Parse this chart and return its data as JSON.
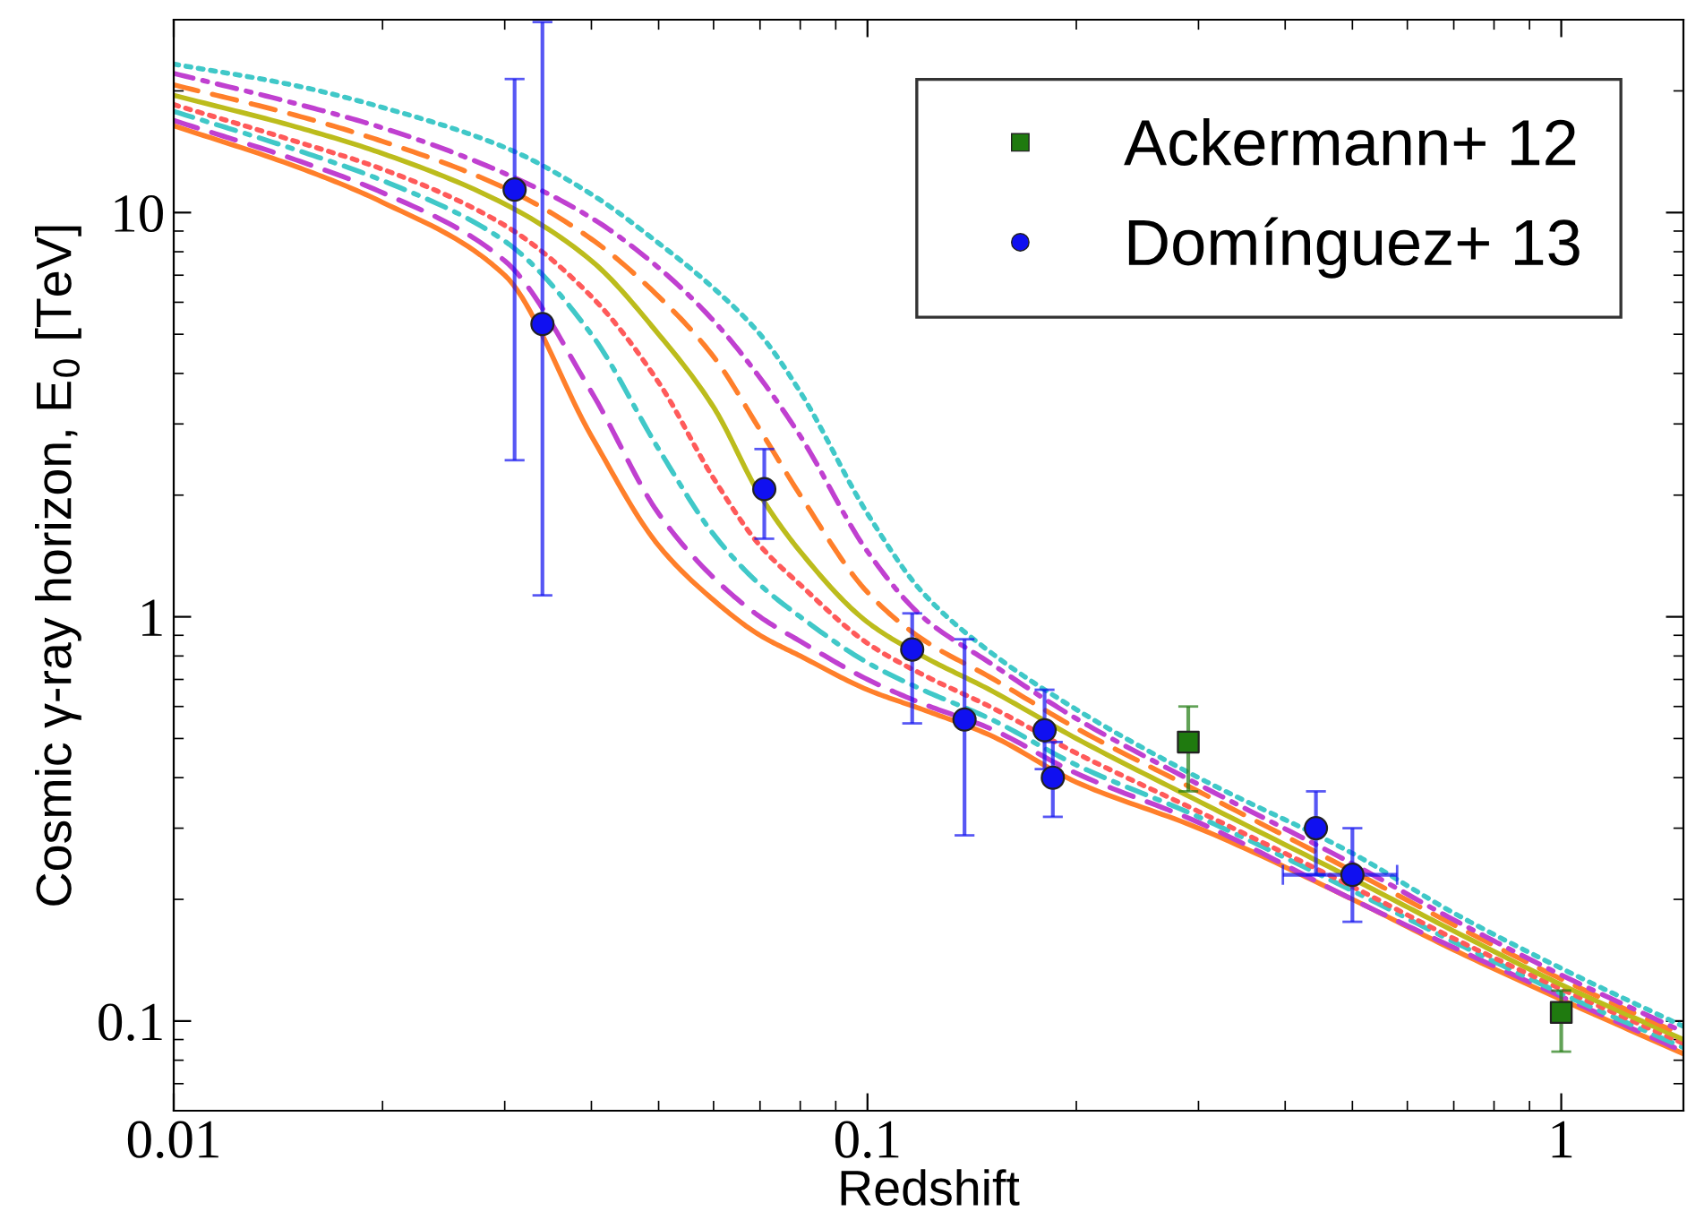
{
  "chart_data": {
    "type": "line",
    "xlabel": "Redshift",
    "ylabel": "Cosmic γ-ray horizon, E$_{0}$ [TeV]",
    "log": "xy",
    "xlim": [
      0.01,
      1.5
    ],
    "ylim": [
      0.06,
      30
    ],
    "xticks": [
      0.01,
      0.1,
      1
    ],
    "yticks": [
      0.1,
      1,
      10
    ],
    "grid": false,
    "legend": "top right",
    "series": [
      {
        "color": "#ff7f2a",
        "line_style": "solid",
        "x": [
          0.01,
          0.015,
          0.02,
          0.03,
          0.04,
          0.05,
          0.06,
          0.07,
          0.08,
          0.1,
          0.12,
          0.15,
          0.2,
          0.3,
          0.5,
          0.7,
          1,
          1.5
        ],
        "values": [
          16.4,
          13,
          10.6,
          7.0,
          2.8,
          1.5,
          1.1,
          0.9,
          0.8,
          0.66,
          0.59,
          0.51,
          0.39,
          0.3,
          0.2,
          0.15,
          0.113,
          0.083
        ]
      },
      {
        "color": "#c040d0",
        "line_style": "dashed",
        "x": [
          0.01,
          0.015,
          0.02,
          0.03,
          0.04,
          0.05,
          0.06,
          0.07,
          0.08,
          0.1,
          0.12,
          0.15,
          0.2,
          0.3,
          0.5,
          0.7,
          1,
          1.5
        ],
        "values": [
          16.9,
          13.5,
          11.2,
          7.6,
          3.6,
          1.8,
          1.25,
          1.0,
          0.87,
          0.7,
          0.61,
          0.53,
          0.41,
          0.31,
          0.2,
          0.152,
          0.115,
          0.084
        ]
      },
      {
        "color": "#40c8c8",
        "line_style": "dashdot",
        "x": [
          0.01,
          0.015,
          0.02,
          0.03,
          0.04,
          0.05,
          0.06,
          0.07,
          0.08,
          0.1,
          0.12,
          0.15,
          0.2,
          0.3,
          0.5,
          0.7,
          1,
          1.5
        ],
        "values": [
          17.8,
          14.3,
          12,
          8.5,
          5.0,
          2.6,
          1.6,
          1.2,
          1.0,
          0.77,
          0.66,
          0.56,
          0.43,
          0.32,
          0.21,
          0.157,
          0.117,
          0.086
        ]
      },
      {
        "color": "#ff5a5a",
        "line_style": "dotted",
        "x": [
          0.01,
          0.015,
          0.02,
          0.03,
          0.04,
          0.05,
          0.06,
          0.07,
          0.08,
          0.1,
          0.12,
          0.15,
          0.2,
          0.3,
          0.5,
          0.7,
          1,
          1.5
        ],
        "values": [
          18.5,
          15,
          12.8,
          9.3,
          6.2,
          3.8,
          2.2,
          1.5,
          1.2,
          0.86,
          0.72,
          0.6,
          0.46,
          0.33,
          0.215,
          0.16,
          0.12,
          0.088
        ]
      },
      {
        "color": "#bcbc1c",
        "line_style": "solid",
        "x": [
          0.01,
          0.015,
          0.02,
          0.03,
          0.04,
          0.05,
          0.06,
          0.07,
          0.08,
          0.1,
          0.12,
          0.15,
          0.2,
          0.3,
          0.5,
          0.7,
          1,
          1.5
        ],
        "values": [
          19.5,
          16.3,
          14,
          10.5,
          7.6,
          5.0,
          3.3,
          2.0,
          1.45,
          0.97,
          0.8,
          0.66,
          0.5,
          0.35,
          0.225,
          0.167,
          0.123,
          0.09
        ]
      },
      {
        "color": "#ff7f2a",
        "line_style": "dashed",
        "x": [
          0.01,
          0.015,
          0.02,
          0.03,
          0.04,
          0.05,
          0.06,
          0.07,
          0.08,
          0.1,
          0.12,
          0.15,
          0.2,
          0.3,
          0.5,
          0.7,
          1,
          1.5
        ],
        "values": [
          20.7,
          17.4,
          15,
          11.5,
          8.6,
          6.2,
          4.4,
          2.9,
          2.0,
          1.15,
          0.88,
          0.71,
          0.53,
          0.37,
          0.235,
          0.173,
          0.127,
          0.092
        ]
      },
      {
        "color": "#c040d0",
        "line_style": "dashdot",
        "x": [
          0.01,
          0.015,
          0.02,
          0.03,
          0.04,
          0.05,
          0.06,
          0.07,
          0.08,
          0.1,
          0.12,
          0.15,
          0.2,
          0.3,
          0.5,
          0.7,
          1,
          1.5
        ],
        "values": [
          22.1,
          18.6,
          16.2,
          12.5,
          9.7,
          7.3,
          5.4,
          3.9,
          2.8,
          1.45,
          1.0,
          0.77,
          0.56,
          0.385,
          0.245,
          0.178,
          0.13,
          0.094
        ]
      },
      {
        "color": "#40c8c8",
        "line_style": "dotted",
        "x": [
          0.01,
          0.015,
          0.02,
          0.03,
          0.04,
          0.05,
          0.06,
          0.07,
          0.08,
          0.1,
          0.12,
          0.15,
          0.2,
          0.3,
          0.5,
          0.7,
          1,
          1.5
        ],
        "values": [
          23.3,
          20.6,
          18.2,
          14.5,
          11.1,
          8.4,
          6.5,
          5.0,
          3.6,
          1.8,
          1.15,
          0.82,
          0.59,
          0.4,
          0.26,
          0.185,
          0.135,
          0.097
        ]
      },
      {
        "type": "scatter",
        "name": "Ackermann+ 12",
        "color": "#1f7a0f",
        "marker": "square",
        "x": [
          0.29,
          1.0
        ],
        "values": [
          0.49,
          0.105
        ],
        "errors": [
          [
            0.37,
            0.6
          ],
          [
            0.084,
            0.119
          ]
        ]
      },
      {
        "type": "scatter",
        "name": "Domínguez+ 13",
        "color": "#1010f0",
        "marker": "circle",
        "x": [
          0.031,
          0.034,
          0.071,
          0.116,
          0.138,
          0.18,
          0.185,
          0.443,
          0.5
        ],
        "values": [
          11.4,
          5.3,
          2.07,
          0.83,
          0.557,
          0.524,
          0.4,
          0.3,
          0.23
        ],
        "errors": [
          [
            2.44,
            21.4
          ],
          [
            1.13,
            29.6
          ],
          [
            1.56,
            2.6
          ],
          [
            0.545,
            1.02
          ],
          [
            0.288,
            0.88
          ],
          [
            0.42,
            0.66
          ],
          [
            0.32,
            0.49
          ],
          [
            0.23,
            0.37
          ],
          [
            0.176,
            0.3
          ]
        ],
        "xerrors": [
          null,
          null,
          null,
          null,
          null,
          null,
          null,
          null,
          [
            0.397,
            0.58
          ]
        ]
      }
    ]
  }
}
